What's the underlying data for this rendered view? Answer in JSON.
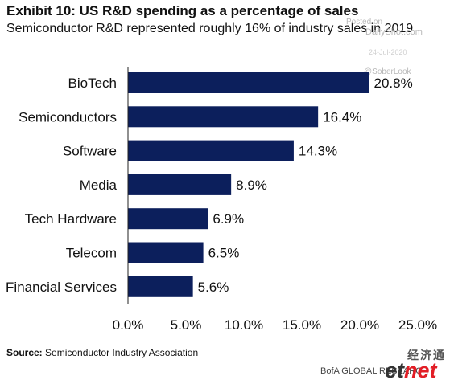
{
  "header": {
    "title": "Exhibit 10: US R&D spending as a percentage of sales",
    "subtitle": "Semiconductor R&D represented roughly 16% of industry sales in 2019"
  },
  "watermarks": {
    "posted": "Posted on",
    "site": "DailyShot.com",
    "date": "24-Jul-2020",
    "handle": "@SoberLook"
  },
  "footer": {
    "source_label": "Source:",
    "source_text": "Semiconductor Industry Association",
    "brand": "BofA GLOBAL RESEARCH",
    "logo_cn": "经济通",
    "logo_et_a": "et",
    "logo_et_b": "net"
  },
  "chart_data": {
    "type": "bar",
    "orientation": "horizontal",
    "categories": [
      "BioTech",
      "Semiconductors",
      "Software",
      "Media",
      "Tech Hardware",
      "Telecom",
      "Financial Services"
    ],
    "values": [
      20.8,
      16.4,
      14.3,
      8.9,
      6.9,
      6.5,
      5.6
    ],
    "value_labels": [
      "20.8%",
      "16.4%",
      "14.3%",
      "8.9%",
      "6.9%",
      "6.5%",
      "5.6%"
    ],
    "xlim": [
      0,
      25
    ],
    "xticks": [
      0,
      5,
      10,
      15,
      20,
      25
    ],
    "xtick_labels": [
      "0.0%",
      "5.0%",
      "10.0%",
      "15.0%",
      "20.0%",
      "25.0%"
    ],
    "bar_color": "#0c1f5c",
    "grid": false,
    "legend": "none"
  }
}
